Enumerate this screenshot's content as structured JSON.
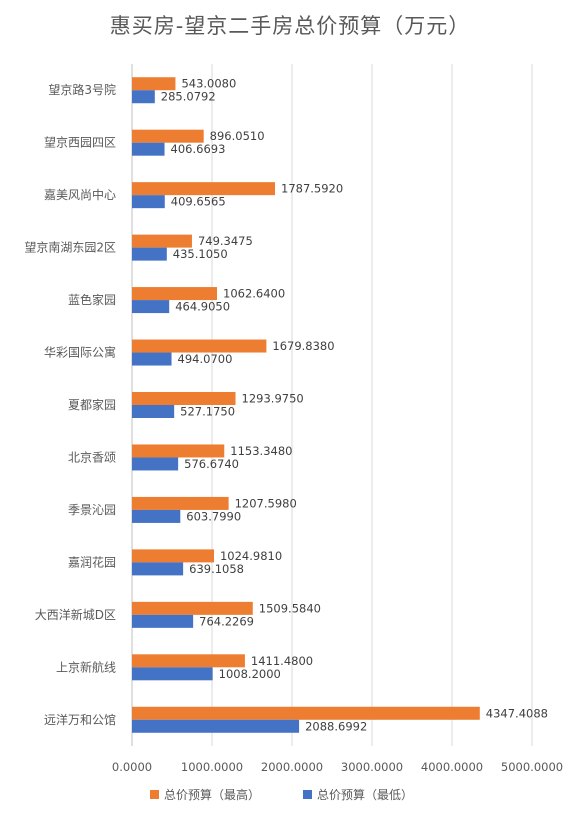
{
  "chart_data": {
    "type": "bar",
    "orientation": "horizontal",
    "title": "惠买房-望京二手房总价预算（万元）",
    "categories": [
      "望京路3号院",
      "望京西园四区",
      "嘉美风尚中心",
      "望京南湖东园2区",
      "蓝色家园",
      "华彩国际公寓",
      "夏都家园",
      "北京香颂",
      "季景沁园",
      "嘉润花园",
      "大西洋新城D区",
      "上京新航线",
      "远洋万和公馆"
    ],
    "series": [
      {
        "name": "总价预算（最高）",
        "color": "#ED7D31",
        "values": [
          543.008,
          896.051,
          1787.592,
          749.3475,
          1062.64,
          1679.838,
          1293.975,
          1153.348,
          1207.598,
          1024.981,
          1509.584,
          1411.48,
          4347.4088
        ],
        "labels": [
          "543.0080",
          "896.0510",
          "1787.5920",
          "749.3475",
          "1062.6400",
          "1679.8380",
          "1293.9750",
          "1153.3480",
          "1207.5980",
          "1024.9810",
          "1509.5840",
          "1411.4800",
          "4347.4088"
        ]
      },
      {
        "name": "总价预算（最低）",
        "color": "#4472C4",
        "values": [
          285.0792,
          406.6693,
          409.6565,
          435.105,
          464.905,
          494.07,
          527.175,
          576.674,
          603.799,
          639.1058,
          764.2269,
          1008.2,
          2088.6992
        ],
        "labels": [
          "285.0792",
          "406.6693",
          "409.6565",
          "435.1050",
          "464.9050",
          "494.0700",
          "527.1750",
          "576.6740",
          "603.7990",
          "639.1058",
          "764.2269",
          "1008.2000",
          "2088.6992"
        ]
      }
    ],
    "xlim": [
      0,
      5000
    ],
    "xticks": [
      0,
      1000,
      2000,
      3000,
      4000,
      5000
    ],
    "xtick_labels": [
      "0.0000",
      "1000.0000",
      "2000.0000",
      "3000.0000",
      "4000.0000",
      "5000.0000"
    ],
    "grid": true,
    "legend_position": "bottom"
  }
}
